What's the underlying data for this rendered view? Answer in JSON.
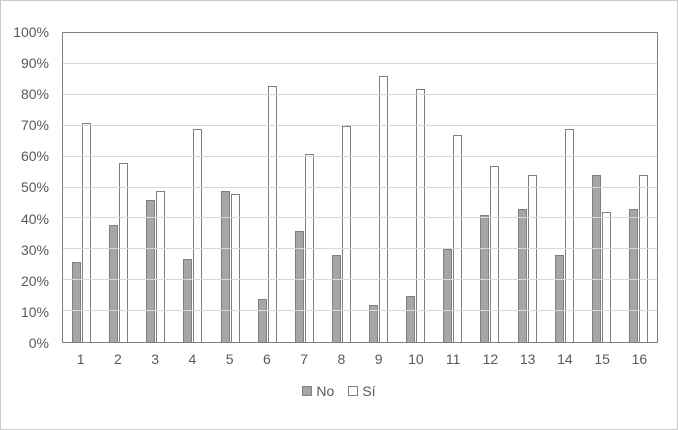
{
  "chart_data": {
    "type": "bar",
    "title": "",
    "categories": [
      "1",
      "2",
      "3",
      "4",
      "5",
      "6",
      "7",
      "8",
      "9",
      "10",
      "11",
      "12",
      "13",
      "14",
      "15",
      "16"
    ],
    "series": [
      {
        "name": "No",
        "fill": "#a6a6a6",
        "border": "#7f7f7f",
        "values": [
          26,
          38,
          46,
          27,
          49,
          14,
          36,
          28,
          12,
          15,
          30,
          41,
          43,
          28,
          54,
          43
        ]
      },
      {
        "name": "Sí",
        "fill": "#ffffff",
        "border": "#7f7f7f",
        "values": [
          71,
          58,
          49,
          69,
          48,
          83,
          61,
          70,
          86,
          82,
          67,
          57,
          54,
          69,
          42,
          54
        ]
      }
    ],
    "xlabel": "",
    "ylabel": "",
    "ylim": [
      0,
      100
    ],
    "y_tick_labels_desc": [
      "100%",
      "90%",
      "80%",
      "70%",
      "60%",
      "50%",
      "40%",
      "30%",
      "20%",
      "10%",
      "0%"
    ],
    "grid": "horizontal",
    "gridline_color": "#d9d9d9",
    "plot_border_color": "#808080",
    "axis_label_color": "#595959",
    "legend_position": "bottom-center"
  },
  "legend": {
    "items": [
      {
        "label": "No"
      },
      {
        "label": "Sí"
      }
    ]
  }
}
